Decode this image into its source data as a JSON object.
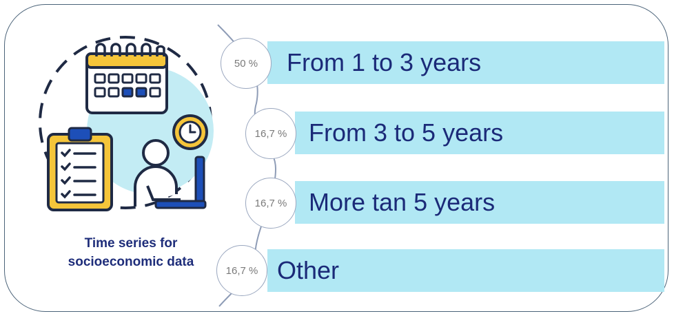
{
  "caption": {
    "line1": "Time series for",
    "line2": "socioeconomic data"
  },
  "items": [
    {
      "percent": "50 %",
      "label": "From 1 to 3 years"
    },
    {
      "percent": "16,7 %",
      "label": "From 3 to 5 years"
    },
    {
      "percent": "16,7 %",
      "label": "More tan 5 years"
    },
    {
      "percent": "16,7 %",
      "label": "Other"
    }
  ],
  "colors": {
    "bar": "#b1e8f4",
    "text": "#1b2a78",
    "accent_yellow": "#f5c53a",
    "accent_blue": "#1d4fb8"
  },
  "icons": [
    "calendar-icon",
    "clipboard-checklist-icon",
    "clock-icon",
    "person-at-laptop-icon"
  ]
}
